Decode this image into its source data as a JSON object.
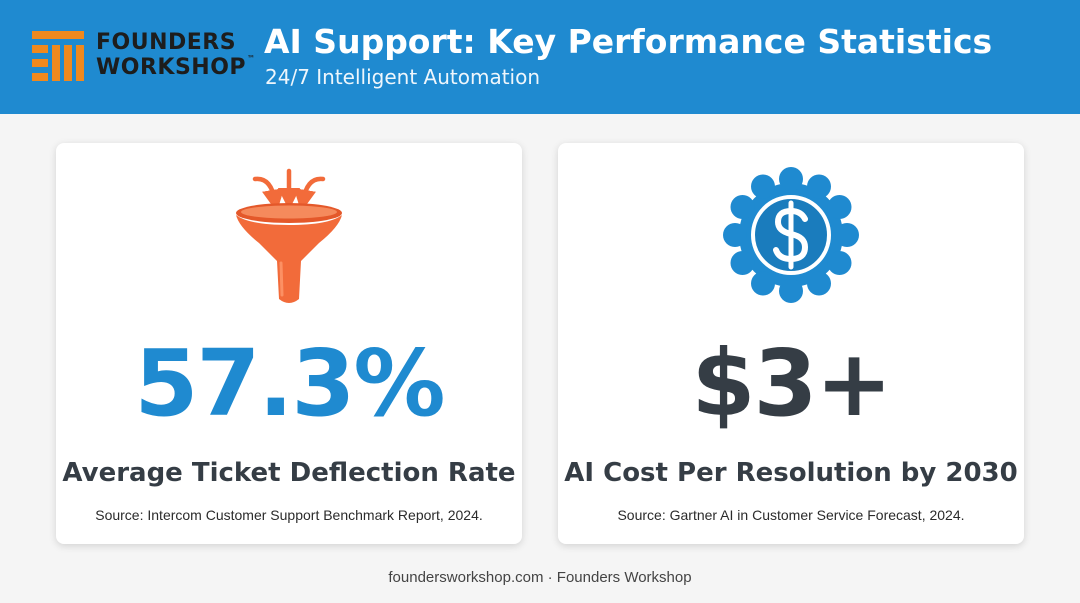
{
  "header": {
    "logo": {
      "line1": "FOUNDERS",
      "line2": "WORKSHOP",
      "trademark": "™"
    },
    "title": "AI Support: Key Performance Statistics",
    "subtitle": "24/7 Intelligent Automation"
  },
  "cards": [
    {
      "icon": "funnel-icon",
      "stat": "57.3%",
      "label": "Average Ticket Deflection Rate",
      "source": "Source: Intercom Customer Support Benchmark Report, 2024."
    },
    {
      "icon": "dollar-badge-icon",
      "stat": "$3+",
      "label": "AI Cost Per Resolution by 2030",
      "source": "Source: Gartner AI in Customer Service Forecast, 2024."
    }
  ],
  "footer": {
    "text": "foundersworkshop.com · Founders Workshop"
  },
  "colors": {
    "header_bg": "#1f8ad0",
    "accent_blue": "#1f8ad0",
    "accent_orange": "#f26b3a",
    "logo_orange": "#f0891e",
    "dark_text": "#353d45",
    "page_bg": "#f5f5f5",
    "card_bg": "#ffffff"
  }
}
